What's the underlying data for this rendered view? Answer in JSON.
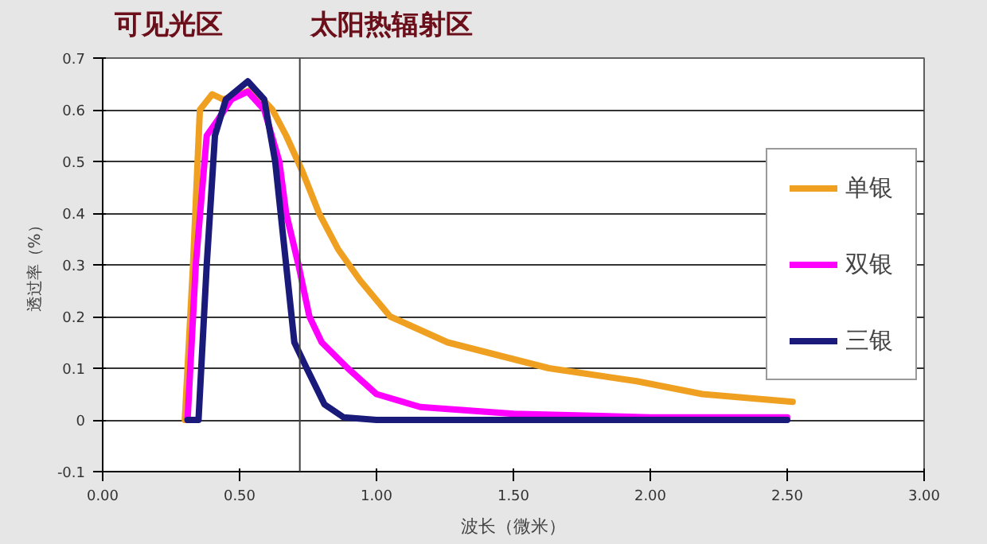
{
  "chart_data": {
    "type": "line",
    "xlabel": "波长（微米）",
    "ylabel": "透过率（%）",
    "xlim": [
      0,
      3
    ],
    "xticks": [
      {
        "value": 0,
        "label": "0.00"
      },
      {
        "value": 0.5,
        "label": "0.50"
      },
      {
        "value": 1,
        "label": "1.00"
      },
      {
        "value": 1.5,
        "label": "1.50"
      },
      {
        "value": 2,
        "label": "2.00"
      },
      {
        "value": 2.5,
        "label": "2.50"
      },
      {
        "value": 3,
        "label": "3.00"
      }
    ],
    "ylim": [
      -0.1,
      0.7
    ],
    "yticks": [
      -0.1,
      0,
      0.1,
      0.2,
      0.3,
      0.4,
      0.5,
      0.6,
      0.7
    ],
    "grid": "y",
    "legend": "right",
    "line_style": "solid",
    "ref_lines": [
      {
        "axis": "x",
        "value": 0.72,
        "label": null,
        "color": "#404040"
      }
    ],
    "annotations": [
      "可见光区",
      "太阳热辐射区"
    ],
    "series": [
      {
        "name": "单银",
        "color": "#f0a020",
        "x": [
          0.3,
          0.33,
          0.355,
          0.4,
          0.44,
          0.5,
          0.55,
          0.62,
          0.67,
          0.73,
          0.79,
          0.86,
          0.94,
          1.05,
          1.26,
          1.63,
          1.95,
          2.19,
          2.52
        ],
        "values": [
          0,
          0.3,
          0.6,
          0.63,
          0.62,
          0.63,
          0.64,
          0.6,
          0.55,
          0.48,
          0.4,
          0.33,
          0.27,
          0.2,
          0.15,
          0.1,
          0.075,
          0.05,
          0.035
        ]
      },
      {
        "name": "双银",
        "color": "#ff00ff",
        "x": [
          0.31,
          0.34,
          0.38,
          0.42,
          0.47,
          0.53,
          0.59,
          0.645,
          0.67,
          0.715,
          0.755,
          0.8,
          0.895,
          1.0,
          1.16,
          1.5,
          2.0,
          2.5
        ],
        "values": [
          0,
          0.3,
          0.55,
          0.58,
          0.62,
          0.635,
          0.6,
          0.5,
          0.4,
          0.3,
          0.2,
          0.15,
          0.1,
          0.05,
          0.025,
          0.012,
          0.005,
          0.005
        ]
      },
      {
        "name": "三银",
        "color": "#1a1a7a",
        "x": [
          0.31,
          0.35,
          0.38,
          0.41,
          0.45,
          0.53,
          0.59,
          0.63,
          0.67,
          0.7,
          0.745,
          0.81,
          0.88,
          1.0,
          1.5,
          2.0,
          2.5
        ],
        "values": [
          0,
          0,
          0.3,
          0.55,
          0.62,
          0.655,
          0.62,
          0.5,
          0.3,
          0.15,
          0.1,
          0.03,
          0.005,
          0,
          0,
          0,
          0
        ]
      }
    ]
  }
}
